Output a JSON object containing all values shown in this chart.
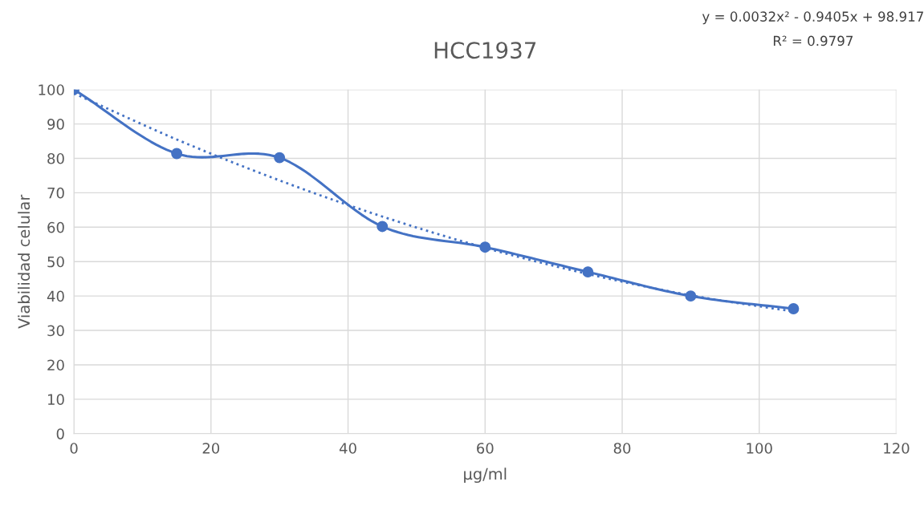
{
  "chart_data": {
    "type": "line",
    "title": "HCC1937",
    "xlabel": "µg/ml",
    "ylabel": "Viabilidad celular",
    "annotations": [
      "y = 0.0032x² - 0.9405x + 98.917",
      "R² = 0.9797"
    ],
    "x": [
      0,
      15,
      30,
      45,
      60,
      75,
      90,
      105
    ],
    "series": [
      {
        "color": "#4472c4",
        "values": [
          100,
          81.4,
          80.2,
          60.2,
          54.2,
          47,
          40,
          36.3
        ],
        "marker": "circle",
        "line_style": "solid"
      },
      {
        "type": "line",
        "color": "#4472c4",
        "x": [
          0,
          15,
          30,
          45,
          60,
          75,
          90,
          105
        ],
        "values": [
          98.9,
          85.5,
          73.6,
          63.1,
          54,
          46.4,
          40.2,
          35.5
        ],
        "marker": "none",
        "line_style": "dotted"
      }
    ],
    "xlim": [
      0,
      120
    ],
    "xticks": [
      0,
      20,
      40,
      60,
      80,
      100,
      120
    ],
    "ylim": [
      0,
      100
    ],
    "yticks": [
      0,
      10,
      20,
      30,
      40,
      50,
      60,
      70,
      80,
      90,
      100
    ],
    "grid": true,
    "legend": false
  }
}
